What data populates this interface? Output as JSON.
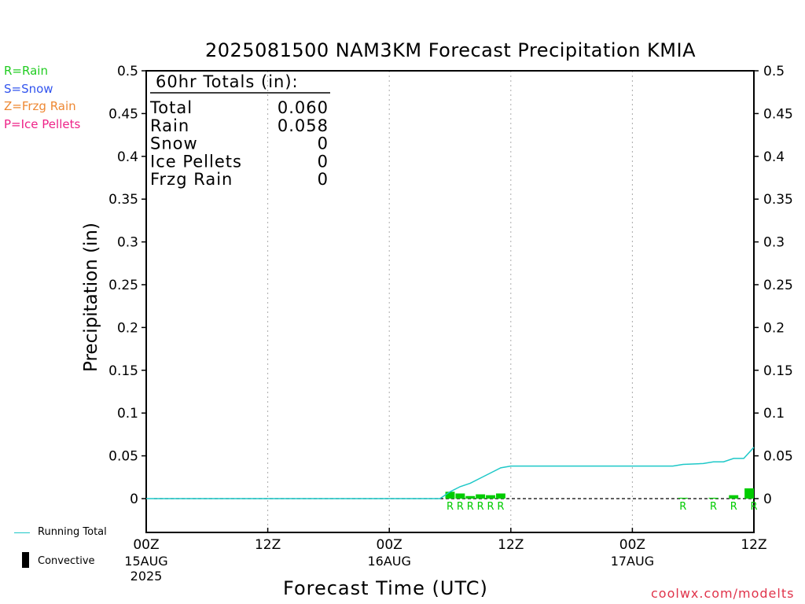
{
  "chart_data": {
    "type": "bar",
    "title": "2025081500 NAM3KM Forecast Precipitation KMIA",
    "xlabel": "Forecast Time (UTC)",
    "ylabel": "Precipitation (in)",
    "ylim": [
      0,
      0.5
    ],
    "xlim_hours": [
      0,
      60
    ],
    "grid": "vertical dotted",
    "y_ticks": [
      "0",
      "0.05",
      "0.1",
      "0.15",
      "0.2",
      "0.25",
      "0.3",
      "0.35",
      "0.4",
      "0.45",
      "0.5"
    ],
    "x_ticks": [
      {
        "label": "00Z",
        "sub": "15AUG",
        "sub2": "2025"
      },
      {
        "label": "12Z",
        "sub": "",
        "sub2": ""
      },
      {
        "label": "00Z",
        "sub": "16AUG",
        "sub2": ""
      },
      {
        "label": "12Z",
        "sub": "",
        "sub2": ""
      },
      {
        "label": "00Z",
        "sub": "17AUG",
        "sub2": ""
      },
      {
        "label": "12Z",
        "sub": "",
        "sub2": ""
      }
    ],
    "bars": [
      {
        "hour": 30,
        "value": 0.008,
        "type": "R"
      },
      {
        "hour": 31,
        "value": 0.006,
        "type": "R"
      },
      {
        "hour": 32,
        "value": 0.003,
        "type": "R"
      },
      {
        "hour": 33,
        "value": 0.005,
        "type": "R"
      },
      {
        "hour": 34,
        "value": 0.004,
        "type": "R"
      },
      {
        "hour": 35,
        "value": 0.006,
        "type": "R"
      },
      {
        "hour": 53,
        "value": 0.001,
        "type": "R"
      },
      {
        "hour": 56,
        "value": 0.001,
        "type": "R"
      },
      {
        "hour": 58,
        "value": 0.004,
        "type": "R"
      },
      {
        "hour": 60,
        "value": 0.012,
        "type": "R"
      }
    ],
    "running_total": {
      "name": "Running Total",
      "x": [
        0,
        29,
        30,
        31,
        32,
        33,
        34,
        35,
        36,
        52,
        53,
        55,
        56,
        57,
        58,
        59,
        60
      ],
      "y": [
        0,
        0,
        0.008,
        0.014,
        0.018,
        0.024,
        0.03,
        0.036,
        0.038,
        0.038,
        0.04,
        0.041,
        0.043,
        0.043,
        0.047,
        0.047,
        0.06
      ]
    },
    "totals_box": {
      "heading": "60hr Totals (in):",
      "rows": [
        {
          "label": "Total",
          "value": "0.060"
        },
        {
          "label": "Rain",
          "value": "0.058"
        },
        {
          "label": "Snow",
          "value": "0"
        },
        {
          "label": "Ice Pellets",
          "value": "0"
        },
        {
          "label": "Frzg Rain",
          "value": "0"
        }
      ]
    }
  },
  "legend": {
    "ptypes": [
      {
        "text": "R=Rain",
        "color": "#22cc22"
      },
      {
        "text": "S=Snow",
        "color": "#3355ee"
      },
      {
        "text": "Z=Frzg Rain",
        "color": "#ee8833"
      },
      {
        "text": "P=Ice Pellets",
        "color": "#ee2288"
      }
    ],
    "running_total_label": "Running Total",
    "convective_label": "Convective"
  },
  "colors": {
    "rain": "#00cc00",
    "running_total": "#1ec8c8",
    "credit": "#e0334a"
  },
  "credit": "coolwx.com/modelts"
}
